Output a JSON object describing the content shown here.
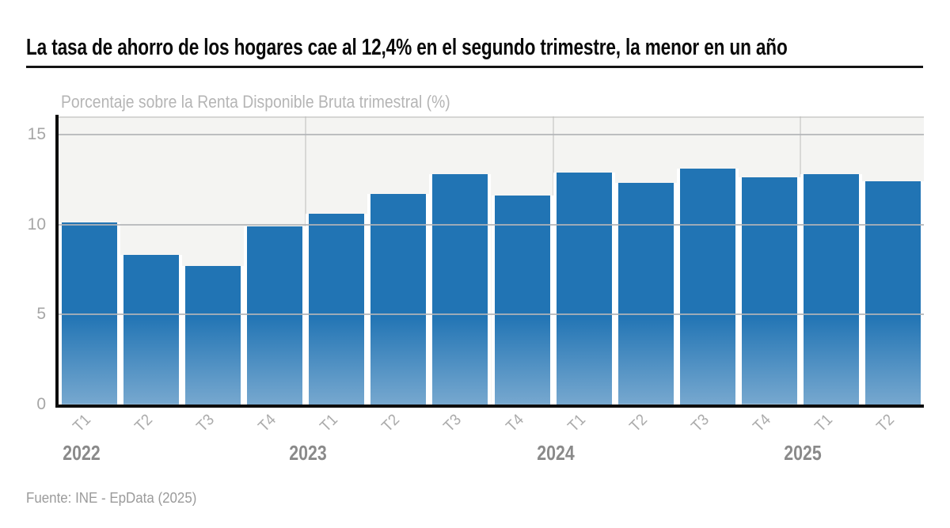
{
  "header": {
    "title": "La tasa de ahorro de los hogares cae al 12,4% en el segundo trimestre, la menor en un año"
  },
  "chart_data": {
    "type": "bar",
    "title": "La tasa de ahorro de los hogares cae al 12,4% en el segundo trimestre, la menor en un año",
    "subtitle": "Porcentaje sobre la Renta Disponible Bruta trimestral (%)",
    "categories": [
      "T1",
      "T2",
      "T3",
      "T4",
      "T1",
      "T2",
      "T3",
      "T4",
      "T1",
      "T2",
      "T3",
      "T4",
      "T1",
      "T2"
    ],
    "years": [
      {
        "label": "2022",
        "start_index": 0
      },
      {
        "label": "2023",
        "start_index": 4
      },
      {
        "label": "2024",
        "start_index": 8
      },
      {
        "label": "2025",
        "start_index": 12
      }
    ],
    "values": [
      10.1,
      8.3,
      7.7,
      9.9,
      10.6,
      11.7,
      12.8,
      11.6,
      12.9,
      12.3,
      13.1,
      12.6,
      12.8,
      12.4
    ],
    "xlabel": "",
    "ylabel": "",
    "yticks": [
      0,
      5,
      10,
      15
    ],
    "ylim": [
      0,
      16
    ],
    "grid": {
      "horizontal": true,
      "vertical_year_boundaries": true
    },
    "legend": "none",
    "colors": {
      "bar_top": "#2174b4",
      "bar_bottom": "#77a8cf",
      "plot_background": "#f4f4f2",
      "gridline": "#b1b4b7",
      "axis": "#0d0d0d",
      "title_text": "#0a0a0a",
      "tick_text": "#a6a6a6",
      "year_text": "#8a8a8a"
    }
  },
  "footer": {
    "source": "Fuente: INE - EpData (2025)"
  }
}
